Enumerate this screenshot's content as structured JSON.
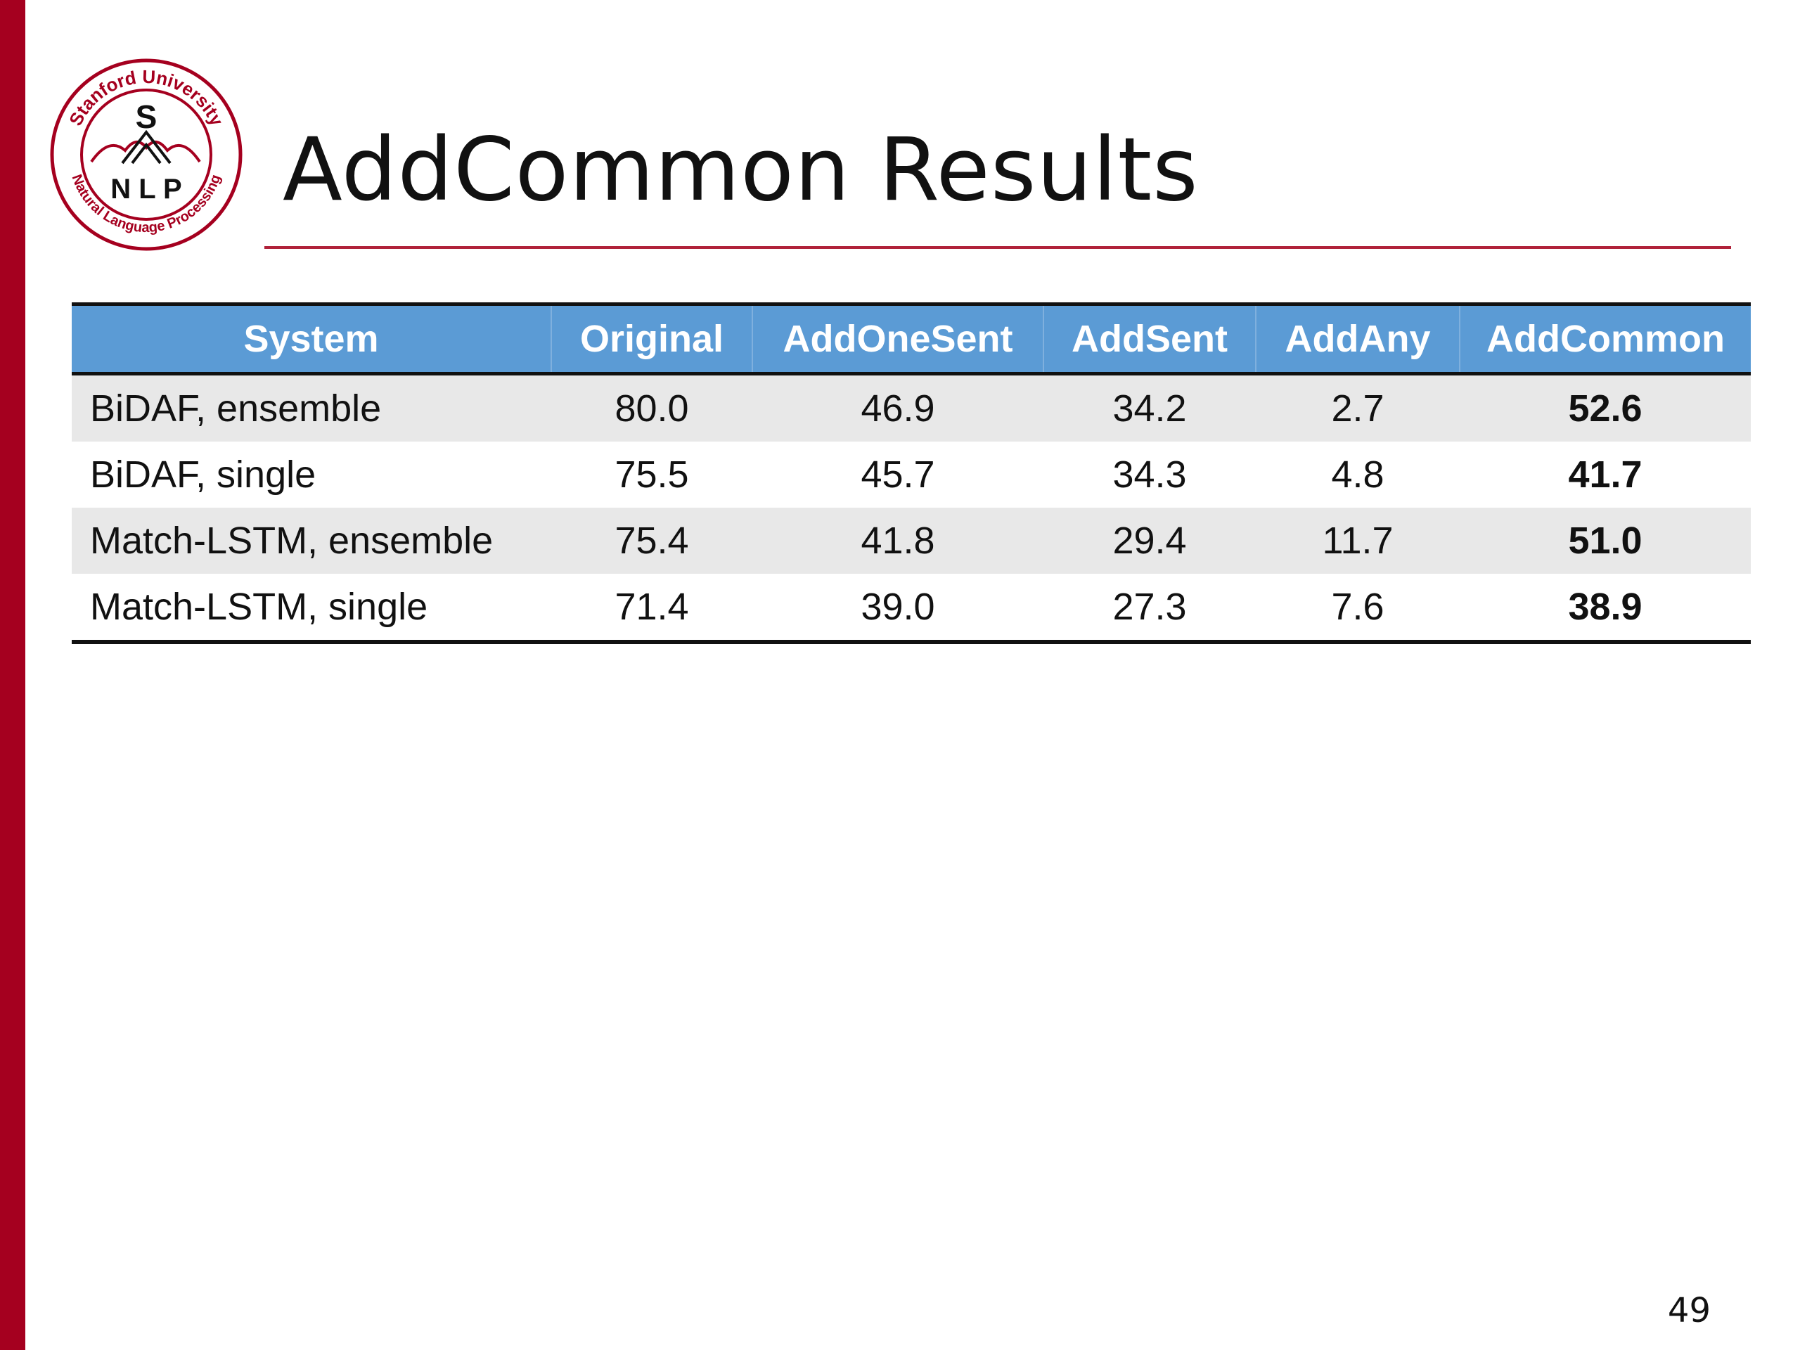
{
  "slide": {
    "title": "AddCommon Results",
    "page_number": "49"
  },
  "logo": {
    "top_text": "Stanford University",
    "bottom_text": "Natural Language Processing",
    "letter_top": "S",
    "letters": "N L P"
  },
  "colors": {
    "accent_bar": "#a5001f",
    "header_fill": "#5b9bd5",
    "row_shade": "#e8e8e8"
  },
  "table": {
    "headers": [
      "System",
      "Original",
      "AddOneSent",
      "AddSent",
      "AddAny",
      "AddCommon"
    ],
    "rows": [
      [
        "BiDAF, ensemble",
        "80.0",
        "46.9",
        "34.2",
        "2.7",
        "52.6"
      ],
      [
        "BiDAF, single",
        "75.5",
        "45.7",
        "34.3",
        "4.8",
        "41.7"
      ],
      [
        "Match-LSTM, ensemble",
        "75.4",
        "41.8",
        "29.4",
        "11.7",
        "51.0"
      ],
      [
        "Match-LSTM, single",
        "71.4",
        "39.0",
        "27.3",
        "7.6",
        "38.9"
      ]
    ]
  }
}
